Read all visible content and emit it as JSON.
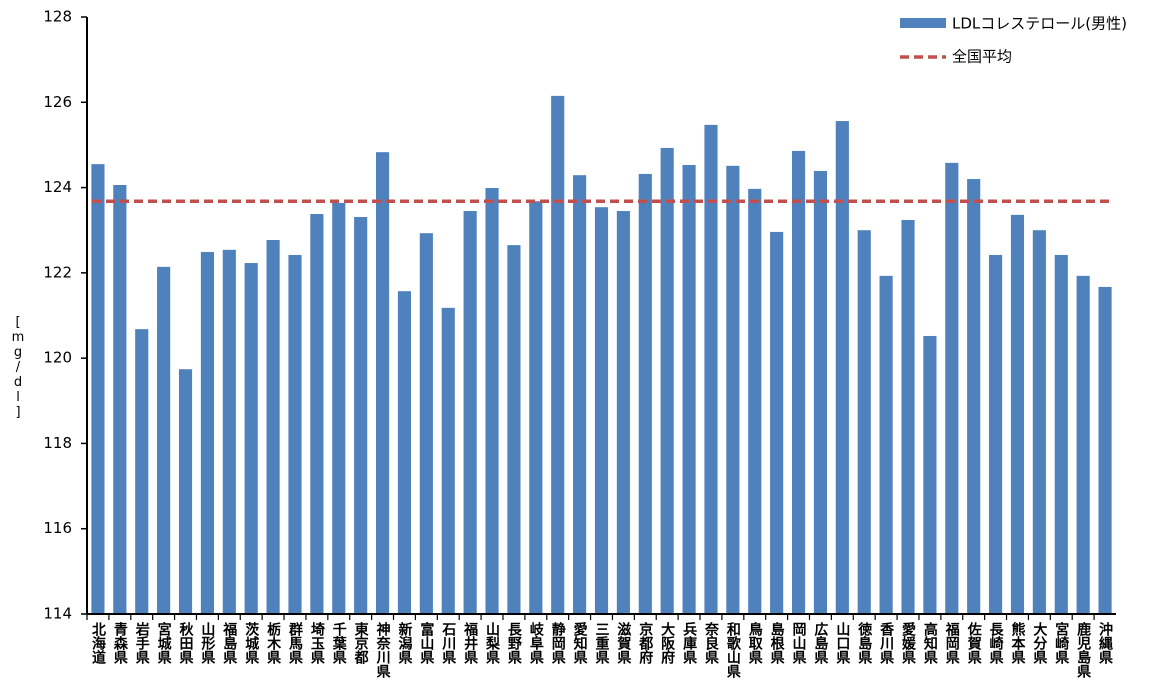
{
  "chart_data": {
    "type": "bar",
    "y_label": "[mg/dl]",
    "categories": [
      "北海道",
      "青森県",
      "岩手県",
      "宮城県",
      "秋田県",
      "山形県",
      "福島県",
      "茨城県",
      "栃木県",
      "群馬県",
      "埼玉県",
      "千葉県",
      "東京都",
      "神奈川県",
      "新潟県",
      "富山県",
      "石川県",
      "福井県",
      "山梨県",
      "長野県",
      "岐阜県",
      "静岡県",
      "愛知県",
      "三重県",
      "滋賀県",
      "京都府",
      "大阪府",
      "兵庫県",
      "奈良県",
      "和歌山県",
      "鳥取県",
      "島根県",
      "岡山県",
      "広島県",
      "山口県",
      "徳島県",
      "香川県",
      "愛媛県",
      "高知県",
      "福岡県",
      "佐賀県",
      "長崎県",
      "熊本県",
      "大分県",
      "宮崎県",
      "鹿児島県",
      "沖縄県"
    ],
    "series": [
      {
        "name": "LDLコレステロール(男性)",
        "color": "#4f81bd",
        "values": [
          124.55,
          124.06,
          120.68,
          122.14,
          119.74,
          122.49,
          122.54,
          122.23,
          122.77,
          122.42,
          123.38,
          123.64,
          123.31,
          124.83,
          121.57,
          122.93,
          121.18,
          123.45,
          123.99,
          122.65,
          123.68,
          126.15,
          124.29,
          123.54,
          123.45,
          124.32,
          124.93,
          124.53,
          125.47,
          124.51,
          123.97,
          122.96,
          124.86,
          124.39,
          125.56,
          123.0,
          121.93,
          123.24,
          120.52,
          124.58,
          124.2,
          122.42,
          123.36,
          123.0,
          122.42,
          121.93,
          121.67
        ]
      }
    ],
    "reference_line": {
      "name": "全国平均",
      "color": "#c0504d",
      "value": 123.68
    },
    "ylim": [
      114,
      128
    ],
    "yticks": [
      114,
      116,
      118,
      120,
      122,
      124,
      126,
      128
    ],
    "grid": false,
    "legend": "top-right"
  }
}
